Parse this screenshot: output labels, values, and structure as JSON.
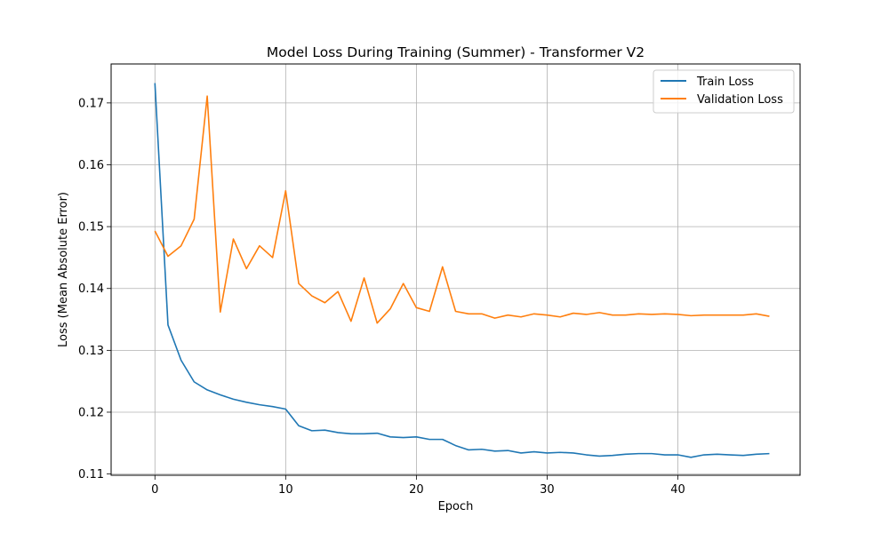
{
  "chart_data": {
    "type": "line",
    "title": "Model Loss During Training (Summer) - Transformer V2",
    "xlabel": "Epoch",
    "ylabel": "Loss (Mean Absolute Error)",
    "xlim": [
      -3.35,
      49.35
    ],
    "ylim": [
      0.1098,
      0.1763
    ],
    "xticks": [
      0,
      10,
      20,
      30,
      40
    ],
    "yticks": [
      0.11,
      0.12,
      0.13,
      0.14,
      0.15,
      0.16,
      0.17
    ],
    "ytick_labels": [
      "0.11",
      "0.12",
      "0.13",
      "0.14",
      "0.15",
      "0.16",
      "0.17"
    ],
    "grid": true,
    "legend_position": "top-right",
    "x": [
      0,
      1,
      2,
      3,
      4,
      5,
      6,
      7,
      8,
      9,
      10,
      11,
      12,
      13,
      14,
      15,
      16,
      17,
      18,
      19,
      20,
      21,
      22,
      23,
      24,
      25,
      26,
      27,
      28,
      29,
      30,
      31,
      32,
      33,
      34,
      35,
      36,
      37,
      38,
      39,
      40,
      41,
      42,
      43,
      44,
      45,
      46,
      47
    ],
    "series": [
      {
        "name": "Train Loss",
        "color": "#1f77b4",
        "values": [
          0.1732,
          0.1341,
          0.1284,
          0.1249,
          0.1236,
          0.1228,
          0.1221,
          0.1216,
          0.1212,
          0.1209,
          0.1205,
          0.1178,
          0.117,
          0.1171,
          0.1167,
          0.1165,
          0.1165,
          0.1166,
          0.116,
          0.1159,
          0.116,
          0.1156,
          0.1156,
          0.1146,
          0.1139,
          0.114,
          0.1137,
          0.1138,
          0.1134,
          0.1136,
          0.1134,
          0.1135,
          0.1134,
          0.1131,
          0.1129,
          0.113,
          0.1132,
          0.1133,
          0.1133,
          0.1131,
          0.1131,
          0.1127,
          0.1131,
          0.1132,
          0.1131,
          0.113,
          0.1132,
          0.1133
        ]
      },
      {
        "name": "Validation Loss",
        "color": "#ff7f0e",
        "values": [
          0.1493,
          0.1452,
          0.1469,
          0.1512,
          0.1711,
          0.1362,
          0.148,
          0.1432,
          0.1469,
          0.145,
          0.1558,
          0.1408,
          0.1388,
          0.1377,
          0.1395,
          0.1347,
          0.1417,
          0.1344,
          0.1367,
          0.1408,
          0.1369,
          0.1363,
          0.1435,
          0.1363,
          0.1359,
          0.1359,
          0.1352,
          0.1357,
          0.1354,
          0.1359,
          0.1357,
          0.1354,
          0.136,
          0.1358,
          0.1361,
          0.1357,
          0.1357,
          0.1359,
          0.1358,
          0.1359,
          0.1358,
          0.1356,
          0.1357,
          0.1357,
          0.1357,
          0.1357,
          0.1359,
          0.1355
        ]
      }
    ]
  }
}
